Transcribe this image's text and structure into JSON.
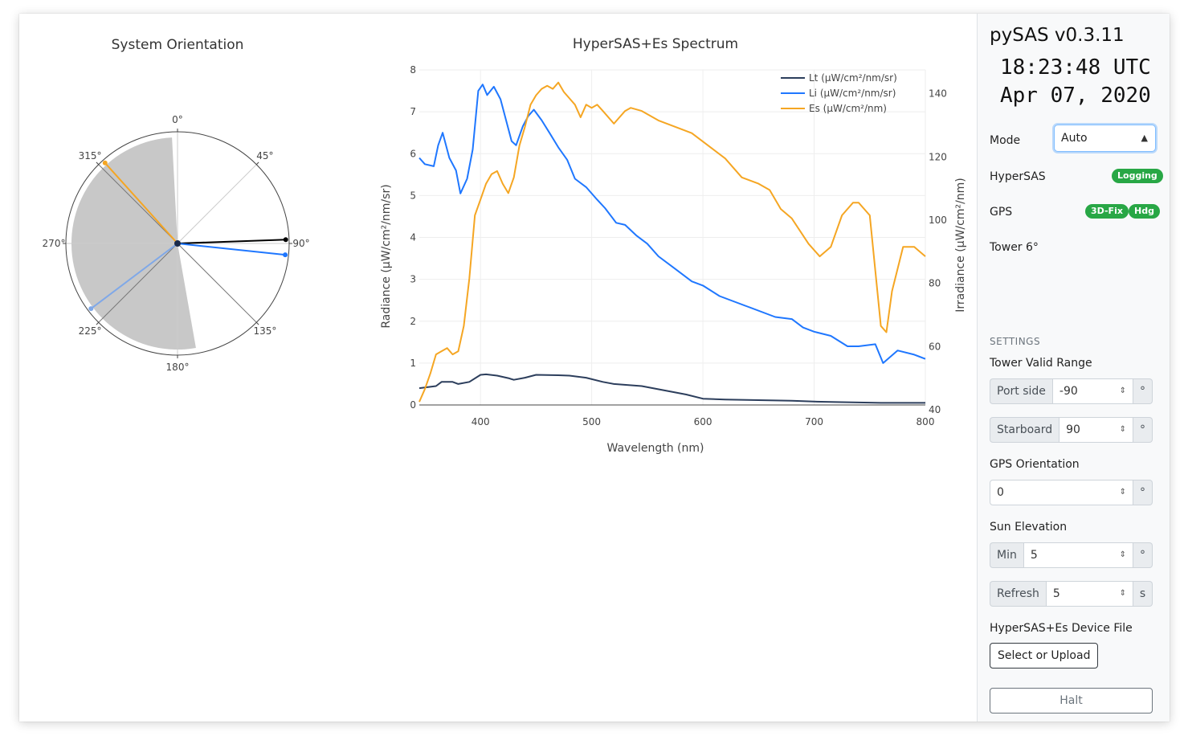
{
  "polar": {
    "title": "System Orientation",
    "angular_ticks": [
      "0°",
      "45°",
      "90°",
      "135°",
      "180°",
      "225°",
      "270°",
      "315°"
    ]
  },
  "chart_data": [
    {
      "type": "polar",
      "title": "System Orientation",
      "angular_ticks_deg": [
        0,
        45,
        90,
        135,
        180,
        225,
        270,
        315
      ],
      "valid_sector_deg": [
        170,
        357
      ],
      "vectors": [
        {
          "color": "#f5a623",
          "angle_deg": 318
        },
        {
          "color": "#000000",
          "angle_deg": 88
        },
        {
          "color": "#1f77ff",
          "angle_deg": 96
        },
        {
          "color": "#7fa8e8",
          "angle_deg": 233
        }
      ],
      "colors": {
        "sector": "#c8c8c8"
      }
    },
    {
      "type": "line",
      "title": "HyperSAS+Es Spectrum",
      "xlabel": "Wavelength (nm)",
      "ylabel": "Radiance (μW/cm²/nm/sr)",
      "y2label": "Irradiance (μW/cm²/nm)",
      "xlim": [
        345,
        800
      ],
      "ylim": [
        0,
        8
      ],
      "y2lim": [
        40,
        146
      ],
      "x_ticks": [
        400,
        500,
        600,
        700,
        800
      ],
      "y_ticks": [
        0,
        1,
        2,
        3,
        4,
        5,
        6,
        7,
        8
      ],
      "y2_ticks": [
        40,
        60,
        80,
        100,
        120,
        140
      ],
      "grid": true,
      "legend": "top-right",
      "series": [
        {
          "name": "Lt (μW/cm²/nm/sr)",
          "axis": "left",
          "color": "#2c3e5c",
          "x": [
            345,
            360,
            365,
            375,
            380,
            390,
            400,
            405,
            415,
            425,
            430,
            440,
            450,
            470,
            480,
            495,
            510,
            520,
            545,
            575,
            585,
            600,
            620,
            640,
            680,
            700,
            720,
            760,
            780,
            800
          ],
          "y": [
            0.4,
            0.45,
            0.55,
            0.55,
            0.5,
            0.55,
            0.72,
            0.73,
            0.7,
            0.64,
            0.6,
            0.65,
            0.72,
            0.71,
            0.7,
            0.65,
            0.55,
            0.5,
            0.45,
            0.3,
            0.25,
            0.15,
            0.13,
            0.12,
            0.1,
            0.08,
            0.07,
            0.05,
            0.05,
            0.05
          ]
        },
        {
          "name": "Li (μW/cm²/nm/sr)",
          "axis": "left",
          "color": "#1f77ff",
          "x": [
            345,
            350,
            358,
            362,
            366,
            372,
            378,
            382,
            388,
            393,
            398,
            402,
            406,
            412,
            418,
            422,
            428,
            432,
            438,
            443,
            448,
            455,
            462,
            470,
            478,
            485,
            495,
            505,
            512,
            522,
            530,
            540,
            550,
            560,
            575,
            590,
            600,
            615,
            640,
            665,
            680,
            690,
            700,
            715,
            730,
            740,
            755,
            762,
            775,
            790,
            800
          ],
          "y": [
            5.9,
            5.75,
            5.7,
            6.2,
            6.5,
            5.9,
            5.6,
            5.05,
            5.4,
            6.1,
            7.5,
            7.65,
            7.4,
            7.6,
            7.3,
            6.9,
            6.3,
            6.2,
            6.65,
            6.9,
            7.05,
            6.8,
            6.5,
            6.15,
            5.85,
            5.4,
            5.2,
            4.9,
            4.7,
            4.35,
            4.3,
            4.05,
            3.85,
            3.55,
            3.25,
            2.95,
            2.85,
            2.6,
            2.35,
            2.1,
            2.05,
            1.85,
            1.75,
            1.65,
            1.4,
            1.4,
            1.45,
            1.0,
            1.3,
            1.2,
            1.1
          ]
        },
        {
          "name": "Es (μW/cm²/nm)",
          "axis": "right",
          "color": "#f5a623",
          "x": [
            345,
            350,
            355,
            360,
            365,
            370,
            375,
            380,
            385,
            390,
            395,
            400,
            405,
            410,
            415,
            420,
            425,
            430,
            435,
            440,
            445,
            450,
            455,
            460,
            465,
            470,
            475,
            480,
            485,
            490,
            495,
            500,
            505,
            510,
            520,
            525,
            530,
            535,
            545,
            560,
            575,
            590,
            605,
            620,
            635,
            650,
            660,
            670,
            680,
            695,
            705,
            715,
            725,
            735,
            740,
            750,
            760,
            765,
            770,
            780,
            790,
            800
          ],
          "y": [
            41,
            45,
            50,
            56,
            57,
            58,
            56,
            57,
            65,
            80,
            100,
            105,
            110,
            113,
            114,
            110,
            107,
            112,
            122,
            128,
            135,
            138,
            140,
            141,
            140,
            142,
            139,
            137,
            135,
            131,
            135,
            134,
            135,
            133,
            129,
            131,
            133,
            134,
            133,
            130,
            128,
            126,
            122,
            118,
            112,
            110,
            108,
            102,
            99,
            91,
            87,
            90,
            100,
            104,
            104,
            100,
            65,
            63,
            76,
            90,
            90,
            87
          ]
        }
      ]
    }
  ],
  "spectrum": {
    "title": "HyperSAS+Es Spectrum",
    "xlabel": "Wavelength (nm)",
    "ylabel": "Radiance (μW/cm²/nm/sr)",
    "y2label": "Irradiance (μW/cm²/nm)",
    "legend": [
      "Lt (μW/cm²/nm/sr)",
      "Li (μW/cm²/nm/sr)",
      "Es (μW/cm²/nm)"
    ]
  },
  "sidebar": {
    "app_title": "pySAS v0.3.11",
    "time": "18:23:48 UTC",
    "date": "Apr 07, 2020",
    "mode_label": "Mode",
    "mode_value": "Auto",
    "hypersas_label": "HyperSAS",
    "hypersas_badge": "Logging",
    "gps_label": "GPS",
    "gps_badges": [
      "3D-Fix",
      "Hdg"
    ],
    "tower_label": "Tower 6°",
    "settings_heading": "SETTINGS",
    "tower_range_label": "Tower Valid Range",
    "port_label": "Port side",
    "port_value": "-90",
    "starboard_label": "Starboard",
    "starboard_value": "90",
    "degree_unit": "°",
    "gps_orientation_label": "GPS Orientation",
    "gps_orientation_value": "0",
    "sun_elevation_label": "Sun Elevation",
    "min_label": "Min",
    "min_value": "5",
    "refresh_label": "Refresh",
    "refresh_value": "5",
    "seconds_unit": "s",
    "device_file_label": "HyperSAS+Es Device File",
    "upload_button": "Select or Upload",
    "halt_button": "Halt"
  }
}
